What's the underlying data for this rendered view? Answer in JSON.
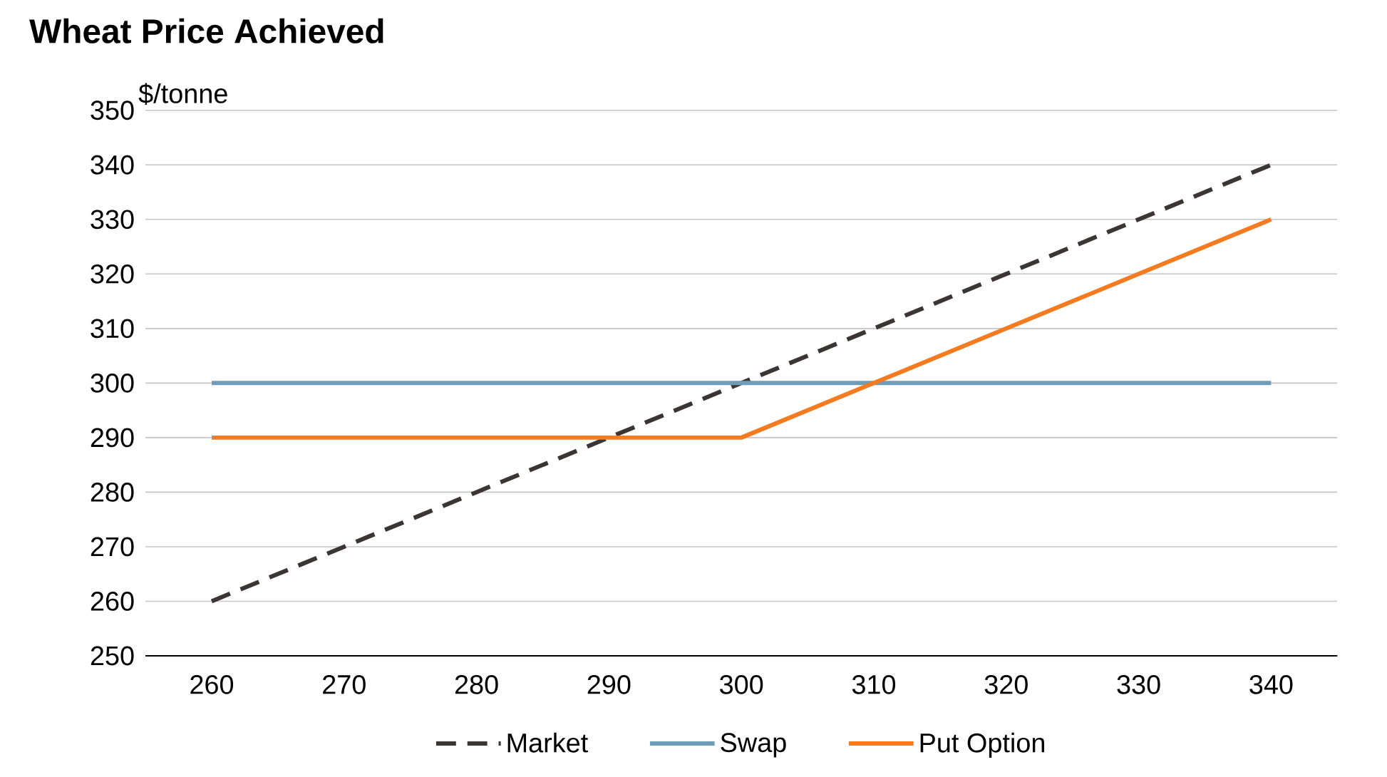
{
  "chart_data": {
    "type": "line",
    "title": "Wheat Price Achieved",
    "ylabel": "$/tonne",
    "categories": [
      "260",
      "270",
      "280",
      "290",
      "300",
      "310",
      "320",
      "330",
      "340"
    ],
    "series": [
      {
        "name": "Market",
        "color": "#3b3536",
        "line_style": "dashed",
        "values": [
          260,
          270,
          280,
          290,
          300,
          310,
          320,
          330,
          340
        ]
      },
      {
        "name": "Swap",
        "color": "#6f9cb8",
        "line_style": "solid",
        "values": [
          300,
          300,
          300,
          300,
          300,
          300,
          300,
          300,
          300
        ]
      },
      {
        "name": "Put Option",
        "color": "#f47b20",
        "line_style": "solid",
        "values": [
          290,
          290,
          290,
          290,
          290,
          300,
          310,
          320,
          330
        ]
      }
    ],
    "ylim": [
      250,
      350
    ],
    "yticks": [
      250,
      260,
      270,
      280,
      290,
      300,
      310,
      320,
      330,
      340,
      350
    ],
    "grid": "y",
    "legend": "bottom",
    "marker": "none"
  }
}
